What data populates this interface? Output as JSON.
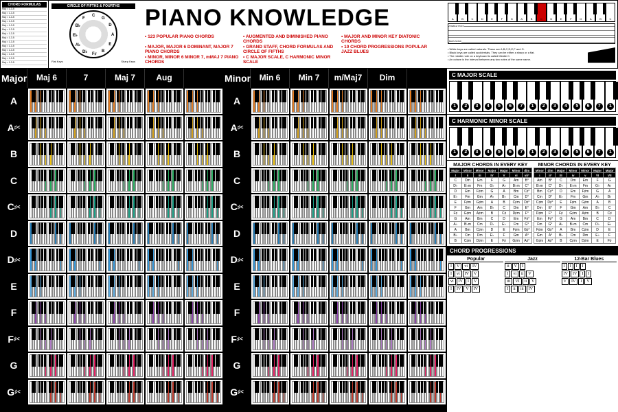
{
  "title": "PIANO KNOWLEDGE",
  "subtitles": [
    "123 POPULAR PIANO CHORDS",
    "AUGMENTED AND DIMINISHED PIANO CHORDS",
    "MAJOR AND MINOR KEY DIATONIC CHORDS",
    "MAJOR, MAJOR 6 DOMINANT, MAJOR 7 PIANO CHORDS",
    "GRAND STAFF, CHORD FORMULAS AND CIRCLE OF FIFTHS",
    "10 CHORD PROGRESSIONS POPULAR JAZZ BLUES",
    "MINOR, MINOR 6 MINOR 7, mMAJ 7 PIANO CHORDS",
    "C MAJOR SCALE, C HARMONIC MINOR SCALE",
    ""
  ],
  "formulas_title": "CHORD FORMULAS",
  "circle_title": "CIRCLE OF FIFTHS & FOURTHS",
  "circle_notes": [
    "C",
    "G",
    "D",
    "A",
    "E",
    "B",
    "F♯",
    "D♭",
    "A♭",
    "E♭",
    "B♭",
    "F"
  ],
  "circle_labels": {
    "flat": "Flat Keys",
    "sharp": "Sharp Keys"
  },
  "major_section": {
    "title": "Major",
    "columns": [
      "Major",
      "Maj 6",
      "7",
      "Maj 7",
      "Aug"
    ]
  },
  "minor_section": {
    "title": "Minor",
    "columns": [
      "Minor",
      "Min 6",
      "Min 7",
      "m/Maj7",
      "Dim"
    ]
  },
  "roots": [
    "A",
    "A♯/B♭",
    "B",
    "C",
    "C♯/D♭",
    "D",
    "D♯/E♭",
    "E",
    "F",
    "F♯/G♭",
    "G",
    "G♯/A♭"
  ],
  "root_colors": {
    "A": "#e67e22",
    "A♯/B♭": "#d4a017",
    "B": "#f1c40f",
    "C": "#27ae60",
    "C♯/D♭": "#16a085",
    "D": "#2980b9",
    "D♯/E♭": "#3498db",
    "E": "#5dade2",
    "F": "#8e44ad",
    "F♯/G♭": "#af7ac5",
    "G": "#e91e63",
    "G♯/A♭": "#c0392b"
  },
  "keyboard_notes": [
    "A",
    "B",
    "C",
    "D",
    "E",
    "F",
    "G",
    "A",
    "B",
    "C",
    "D",
    "E",
    "F",
    "G",
    "A",
    "B",
    "C"
  ],
  "keyboard_notes_text": [
    "White keys are called naturals. These are A,B,C,D,E,F and G.",
    "Black keys are called accidentals. They can be either a sharp or a flat.",
    "The middle note on a keyboard is called Middle C.",
    "An octave is the interval between any two notes of the same name."
  ],
  "staff_labels": {
    "treble": "TREBLE STAFF",
    "bass": "BASS STAFF",
    "middle": "MIDDLE C"
  },
  "scales": {
    "cmajor": {
      "title": "C MAJOR SCALE",
      "degrees": [
        "1",
        "2",
        "3",
        "4",
        "5",
        "6",
        "7",
        "1",
        "2",
        "3",
        "4",
        "5",
        "6",
        "7",
        "1"
      ]
    },
    "charmonic": {
      "title": "C HARMONIC MINOR SCALE",
      "degrees": [
        "1",
        "2",
        "3",
        "4",
        "5",
        "6",
        "7",
        "1",
        "2",
        "3",
        "4",
        "5",
        "6",
        "7",
        "1"
      ]
    }
  },
  "chords_in_key": {
    "major": {
      "title": "MAJOR CHORDS IN EVERY KEY",
      "headers": [
        "Major",
        "Minor",
        "Minor",
        "Major",
        "Major",
        "Minor",
        "dim"
      ],
      "roman": [
        "I",
        "ii",
        "iii",
        "IV",
        "V",
        "vi",
        "vii°"
      ],
      "rows": [
        [
          "C",
          "Dm",
          "Em",
          "F",
          "G",
          "Am",
          "B°"
        ],
        [
          "D♭",
          "E♭m",
          "Fm",
          "G♭",
          "A♭",
          "B♭m",
          "C°"
        ],
        [
          "D",
          "Em",
          "F♯m",
          "G",
          "A",
          "Bm",
          "C♯°"
        ],
        [
          "E♭",
          "Fm",
          "Gm",
          "A♭",
          "B♭",
          "Cm",
          "D°"
        ],
        [
          "E",
          "F♯m",
          "G♯m",
          "A",
          "B",
          "C♯m",
          "D♯°"
        ],
        [
          "F",
          "Gm",
          "Am",
          "B♭",
          "C",
          "Dm",
          "E°"
        ],
        [
          "F♯",
          "G♯m",
          "A♯m",
          "B",
          "C♯",
          "D♯m",
          "F°"
        ],
        [
          "G",
          "Am",
          "Bm",
          "C",
          "D",
          "Em",
          "F♯°"
        ],
        [
          "A♭",
          "B♭m",
          "Cm",
          "D♭",
          "E♭",
          "Fm",
          "G°"
        ],
        [
          "A",
          "Bm",
          "C♯m",
          "D",
          "E",
          "F♯m",
          "G♯°"
        ],
        [
          "B♭",
          "Cm",
          "Dm",
          "E♭",
          "F",
          "Gm",
          "A°"
        ],
        [
          "B",
          "C♯m",
          "D♯m",
          "E",
          "F♯",
          "G♯m",
          "A♯°"
        ]
      ]
    },
    "minor": {
      "title": "MINOR CHORDS IN EVERY KEY",
      "headers": [
        "Minor",
        "dim",
        "Major",
        "Minor",
        "Minor",
        "Major",
        "Major"
      ],
      "roman": [
        "i",
        "ii°",
        "III",
        "iv",
        "v",
        "VI",
        "VII"
      ],
      "rows": [
        [
          "Am",
          "B°",
          "C",
          "Dm",
          "Em",
          "F",
          "G"
        ],
        [
          "B♭m",
          "C°",
          "D♭",
          "E♭m",
          "Fm",
          "G♭",
          "A♭"
        ],
        [
          "Bm",
          "C♯°",
          "D",
          "Em",
          "F♯m",
          "G",
          "A"
        ],
        [
          "Cm",
          "D°",
          "E♭",
          "Fm",
          "Gm",
          "A♭",
          "B♭"
        ],
        [
          "C♯m",
          "D♯°",
          "E",
          "F♯m",
          "G♯m",
          "A",
          "B"
        ],
        [
          "Dm",
          "E°",
          "F",
          "Gm",
          "Am",
          "B♭",
          "C"
        ],
        [
          "D♯m",
          "F°",
          "F♯",
          "G♯m",
          "A♯m",
          "B",
          "C♯"
        ],
        [
          "Em",
          "F♯°",
          "G",
          "Am",
          "Bm",
          "C",
          "D"
        ],
        [
          "Fm",
          "G°",
          "A♭",
          "B♭m",
          "Cm",
          "D♭",
          "E♭"
        ],
        [
          "F♯m",
          "G♯°",
          "A",
          "Bm",
          "C♯m",
          "D",
          "E"
        ],
        [
          "Gm",
          "A°",
          "B♭",
          "Cm",
          "Dm",
          "E♭",
          "F"
        ],
        [
          "G♯m",
          "A♯°",
          "B",
          "C♯m",
          "D♯m",
          "E",
          "F♯"
        ]
      ]
    }
  },
  "progressions": {
    "title": "CHORD PROGRESSIONS",
    "popular": {
      "title": "Popular",
      "rows": [
        [
          "I",
          "V",
          "vi",
          "IV"
        ],
        [
          "I",
          "vi",
          "IV",
          "V"
        ],
        [
          "vi",
          "IV",
          "I",
          "V"
        ],
        [
          "I",
          "IV",
          "V",
          "IV"
        ]
      ]
    },
    "jazz": {
      "title": "Jazz",
      "rows": [
        [
          "ii",
          "V",
          "I"
        ],
        [
          "I",
          "vi",
          "ii",
          "V"
        ],
        [
          "iii",
          "VI",
          "ii",
          "V"
        ],
        [
          "I",
          "ii",
          "iii",
          "IV"
        ]
      ]
    },
    "blues": {
      "title": "12-Bar Blues",
      "rows": [
        [
          "I",
          "I",
          "I",
          "I"
        ],
        [
          "IV",
          "IV",
          "I",
          "I"
        ],
        [
          "V",
          "IV",
          "I",
          "V"
        ]
      ]
    }
  },
  "black_key_pattern": [
    true,
    true,
    false,
    true,
    true,
    true,
    false
  ]
}
